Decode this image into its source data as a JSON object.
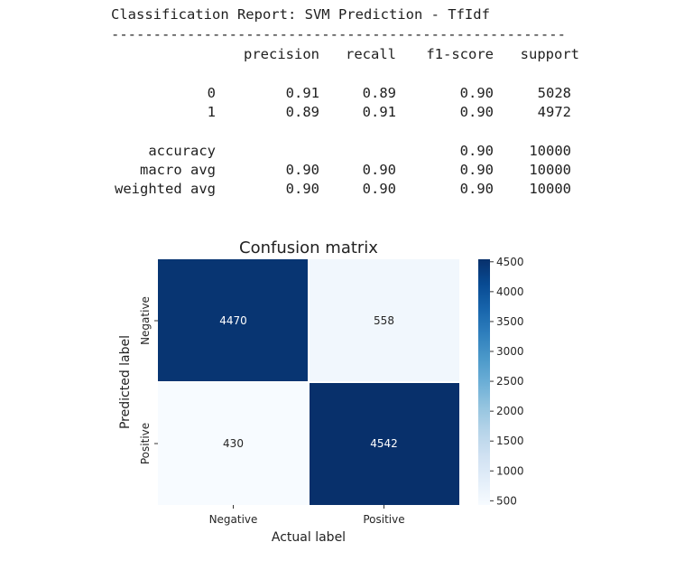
{
  "report": {
    "title": "Classification Report: SVM Prediction - TfIdf",
    "divider": "------------------------------------------------------",
    "headers": [
      "precision",
      "recall",
      "f1-score",
      "support"
    ],
    "rows": [
      {
        "label": "0",
        "precision": "0.91",
        "recall": "0.89",
        "f1": "0.90",
        "support": "5028"
      },
      {
        "label": "1",
        "precision": "0.89",
        "recall": "0.91",
        "f1": "0.90",
        "support": "4972"
      }
    ],
    "summary": [
      {
        "label": "accuracy",
        "precision": "",
        "recall": "",
        "f1": "0.90",
        "support": "10000"
      },
      {
        "label": "macro avg",
        "precision": "0.90",
        "recall": "0.90",
        "f1": "0.90",
        "support": "10000"
      },
      {
        "label": "weighted avg",
        "precision": "0.90",
        "recall": "0.90",
        "f1": "0.90",
        "support": "10000"
      }
    ]
  },
  "chart_data": {
    "type": "heatmap",
    "title": "Confusion matrix",
    "xlabel": "Actual label",
    "ylabel": "Predicted label",
    "x_categories": [
      "Negative",
      "Positive"
    ],
    "y_categories": [
      "Negative",
      "Positive"
    ],
    "values": [
      [
        4470,
        558
      ],
      [
        430,
        4542
      ]
    ],
    "colormap": "Blues",
    "color_range": [
      430,
      4542
    ],
    "colorbar_ticks": [
      500,
      1000,
      1500,
      2000,
      2500,
      3000,
      3500,
      4000,
      4500
    ],
    "colors": {
      "low": "#f7fbff",
      "high": "#08306b"
    }
  }
}
